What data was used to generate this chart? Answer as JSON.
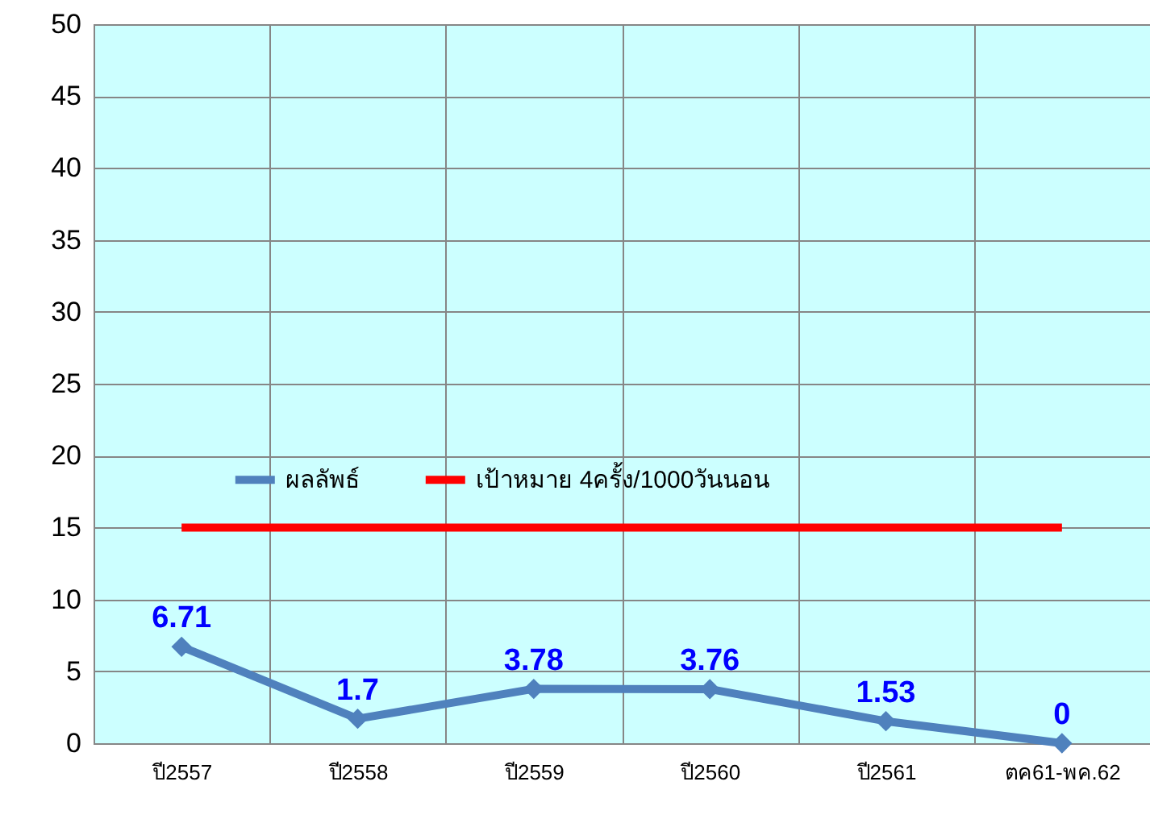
{
  "chart_data": {
    "type": "line",
    "categories": [
      "ปี2557",
      "ปี2558",
      "ปี2559",
      "ปี2560",
      "ปี2561",
      "ตค61-พค.62"
    ],
    "series": [
      {
        "name": "ผลลัพธ์",
        "color": "#4f81bd",
        "marker": "diamond",
        "values": [
          6.71,
          1.7,
          3.78,
          3.76,
          1.53,
          0
        ],
        "value_labels": [
          "6.71",
          "1.7",
          "3.78",
          "3.76",
          "1.53",
          "0"
        ]
      },
      {
        "name": "เป้าหมาย 4ครั้ง/1000วันนอน",
        "color": "#ff0000",
        "marker": "none",
        "values": [
          15,
          15,
          15,
          15,
          15,
          15
        ]
      }
    ],
    "ylim": [
      0,
      50
    ],
    "yticks": [
      0,
      5,
      10,
      15,
      20,
      25,
      30,
      35,
      40,
      45,
      50
    ],
    "grid": true,
    "legend": "center",
    "line_style": "solid"
  }
}
